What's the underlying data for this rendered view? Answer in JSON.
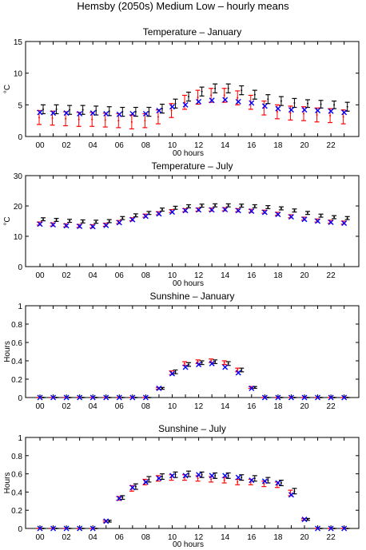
{
  "figure_title": "Hemsby (2050s) Medium Low – hourly means",
  "colors": {
    "black": "#000000",
    "red": "#ff0000",
    "blue": "#0000ff",
    "axis": "#000000"
  },
  "chart_data": [
    {
      "type": "scatter",
      "title": "Temperature – January",
      "xlabel": "00 hours",
      "ylabel": "°C",
      "ylim": [
        0,
        15
      ],
      "yticks": [
        "0",
        "5",
        "10",
        "15"
      ],
      "xticks": [
        "00",
        "02",
        "04",
        "06",
        "08",
        "10",
        "12",
        "14",
        "16",
        "18",
        "20",
        "22"
      ],
      "hours": [
        0,
        1,
        2,
        3,
        4,
        5,
        6,
        7,
        8,
        9,
        10,
        11,
        12,
        13,
        14,
        15,
        16,
        17,
        18,
        19,
        20,
        21,
        22,
        23
      ],
      "series": [
        {
          "color": "black",
          "marker": "errorbar",
          "values": [
            4.3,
            4.3,
            4.2,
            4.2,
            4.1,
            4.0,
            3.9,
            3.9,
            3.9,
            4.4,
            5.2,
            6.3,
            7.1,
            7.6,
            7.6,
            7.3,
            6.6,
            5.9,
            5.6,
            5.3,
            5.2,
            5.1,
            5.0,
            4.7
          ],
          "err": [
            0.7,
            0.7,
            0.7,
            0.7,
            0.7,
            0.7,
            0.7,
            0.7,
            0.7,
            0.7,
            0.7,
            0.7,
            0.7,
            0.7,
            0.7,
            0.7,
            0.7,
            0.7,
            0.7,
            0.7,
            0.6,
            0.6,
            0.6,
            0.7
          ]
        },
        {
          "color": "red",
          "marker": "errorbar",
          "values": [
            3.0,
            2.9,
            2.8,
            2.7,
            2.7,
            2.6,
            2.5,
            2.3,
            2.5,
            3.1,
            4.1,
            5.4,
            6.2,
            6.5,
            6.5,
            6.1,
            5.4,
            4.5,
            3.9,
            3.7,
            3.6,
            3.4,
            3.3,
            3.1
          ],
          "err": [
            1.1,
            1.1,
            1.1,
            1.1,
            1.1,
            1.1,
            1.1,
            1.1,
            1.1,
            1.1,
            1.1,
            1.1,
            1.1,
            1.1,
            1.1,
            1.1,
            1.1,
            1.1,
            1.1,
            1.1,
            1.1,
            1.1,
            1.1,
            1.1
          ]
        },
        {
          "color": "blue",
          "marker": "x",
          "values": [
            3.8,
            3.7,
            3.7,
            3.6,
            3.7,
            3.6,
            3.5,
            3.6,
            3.6,
            4.1,
            4.7,
            5.0,
            5.5,
            5.7,
            5.8,
            5.5,
            5.3,
            4.8,
            4.4,
            4.2,
            4.2,
            4.1,
            4.0,
            3.8
          ]
        }
      ]
    },
    {
      "type": "scatter",
      "title": "Temperature – July",
      "xlabel": "00 hours",
      "ylabel": "°C",
      "ylim": [
        0,
        30
      ],
      "yticks": [
        "0",
        "10",
        "20",
        "30"
      ],
      "xticks": [
        "00",
        "02",
        "04",
        "06",
        "08",
        "10",
        "12",
        "14",
        "16",
        "18",
        "20",
        "22"
      ],
      "hours": [
        0,
        1,
        2,
        3,
        4,
        5,
        6,
        7,
        8,
        9,
        10,
        11,
        12,
        13,
        14,
        15,
        16,
        17,
        18,
        19,
        20,
        21,
        22,
        23
      ],
      "series": [
        {
          "color": "black",
          "marker": "errorbar",
          "values": [
            15.6,
            15.4,
            15.1,
            14.9,
            14.8,
            15.0,
            16.0,
            16.9,
            17.7,
            18.8,
            19.4,
            19.9,
            20.1,
            20.2,
            20.2,
            20.1,
            19.9,
            19.6,
            19.2,
            18.5,
            17.7,
            16.8,
            16.3,
            16.0
          ],
          "err": [
            0.5,
            0.5,
            0.5,
            0.5,
            0.5,
            0.5,
            0.5,
            0.5,
            0.5,
            0.5,
            0.5,
            0.5,
            0.5,
            0.5,
            0.5,
            0.5,
            0.5,
            0.5,
            0.5,
            0.5,
            0.5,
            0.5,
            0.5,
            0.5
          ]
        },
        {
          "color": "red",
          "marker": "errorbar",
          "values": [
            14.2,
            13.9,
            13.6,
            13.4,
            13.3,
            13.8,
            14.7,
            15.6,
            16.8,
            17.6,
            18.3,
            18.6,
            18.8,
            18.8,
            18.9,
            18.6,
            18.4,
            18.1,
            17.4,
            16.6,
            15.8,
            15.2,
            14.8,
            14.5
          ],
          "err": [
            0.5,
            0.5,
            0.5,
            0.5,
            0.5,
            0.5,
            0.5,
            0.5,
            0.5,
            0.5,
            0.5,
            0.5,
            0.5,
            0.5,
            0.5,
            0.5,
            0.5,
            0.5,
            0.5,
            0.5,
            0.5,
            0.5,
            0.5,
            0.5
          ]
        },
        {
          "color": "blue",
          "marker": "x",
          "values": [
            14.0,
            13.8,
            13.5,
            13.3,
            13.2,
            13.6,
            14.5,
            15.5,
            16.6,
            17.4,
            18.0,
            18.5,
            18.7,
            18.7,
            18.8,
            18.5,
            18.3,
            17.9,
            17.2,
            16.4,
            15.6,
            15.0,
            14.6,
            14.3
          ]
        }
      ]
    },
    {
      "type": "scatter",
      "title": "Sunshine – January",
      "xlabel": "",
      "ylabel": "Hours",
      "ylim": [
        0,
        1
      ],
      "yticks": [
        "0",
        "0.2",
        "0.4",
        "0.6",
        "0.8",
        "1"
      ],
      "xticks": [
        "00",
        "02",
        "04",
        "06",
        "08",
        "10",
        "12",
        "14",
        "16",
        "18",
        "20",
        "22"
      ],
      "hours": [
        0,
        1,
        2,
        3,
        4,
        5,
        6,
        7,
        8,
        9,
        10,
        11,
        12,
        13,
        14,
        15,
        16,
        17,
        18,
        19,
        20,
        21,
        22,
        23
      ],
      "series": [
        {
          "color": "black",
          "marker": "errorbar",
          "values": [
            0,
            0,
            0,
            0,
            0,
            0,
            0,
            0,
            0,
            0.1,
            0.28,
            0.36,
            0.38,
            0.39,
            0.37,
            0.3,
            0.11,
            0,
            0,
            0,
            0,
            0,
            0,
            0
          ],
          "err": [
            0,
            0,
            0,
            0,
            0,
            0,
            0,
            0,
            0,
            0.01,
            0.02,
            0.02,
            0.02,
            0.02,
            0.02,
            0.02,
            0.01,
            0,
            0,
            0,
            0,
            0,
            0,
            0
          ]
        },
        {
          "color": "red",
          "marker": "errorbar",
          "values": [
            0,
            0,
            0,
            0,
            0,
            0,
            0,
            0,
            0,
            0.1,
            0.27,
            0.37,
            0.39,
            0.4,
            0.38,
            0.3,
            0.11,
            0,
            0,
            0,
            0,
            0,
            0,
            0
          ],
          "err": [
            0,
            0,
            0,
            0,
            0,
            0,
            0,
            0,
            0,
            0.01,
            0.02,
            0.02,
            0.02,
            0.02,
            0.02,
            0.02,
            0.01,
            0,
            0,
            0,
            0,
            0,
            0,
            0
          ]
        },
        {
          "color": "blue",
          "marker": "x",
          "values": [
            0,
            0,
            0,
            0,
            0,
            0,
            0,
            0,
            0,
            0.1,
            0.26,
            0.33,
            0.36,
            0.37,
            0.33,
            0.27,
            0.1,
            0,
            0,
            0,
            0,
            0,
            0,
            0
          ]
        }
      ]
    },
    {
      "type": "scatter",
      "title": "Sunshine – July",
      "xlabel": "00 hours",
      "ylabel": "Hours",
      "ylim": [
        0,
        1
      ],
      "yticks": [
        "0",
        "0.2",
        "0.4",
        "0.6",
        "0.8",
        "1"
      ],
      "xticks": [
        "00",
        "02",
        "04",
        "06",
        "08",
        "10",
        "12",
        "14",
        "16",
        "18",
        "20",
        "22"
      ],
      "hours": [
        0,
        1,
        2,
        3,
        4,
        5,
        6,
        7,
        8,
        9,
        10,
        11,
        12,
        13,
        14,
        15,
        16,
        17,
        18,
        19,
        20,
        21,
        22,
        23
      ],
      "series": [
        {
          "color": "black",
          "marker": "errorbar",
          "values": [
            0,
            0,
            0,
            0,
            0,
            0.08,
            0.34,
            0.46,
            0.54,
            0.57,
            0.59,
            0.6,
            0.59,
            0.58,
            0.58,
            0.56,
            0.55,
            0.53,
            0.5,
            0.41,
            0.1,
            0,
            0,
            0
          ],
          "err": [
            0,
            0,
            0,
            0,
            0,
            0.01,
            0.02,
            0.03,
            0.03,
            0.03,
            0.03,
            0.03,
            0.03,
            0.03,
            0.03,
            0.03,
            0.03,
            0.03,
            0.03,
            0.03,
            0.01,
            0,
            0,
            0
          ]
        },
        {
          "color": "red",
          "marker": "errorbar",
          "values": [
            0,
            0,
            0,
            0,
            0,
            0.08,
            0.33,
            0.44,
            0.51,
            0.55,
            0.56,
            0.56,
            0.55,
            0.54,
            0.53,
            0.51,
            0.51,
            0.49,
            0.48,
            0.39,
            0.1,
            0,
            0,
            0
          ],
          "err": [
            0,
            0,
            0,
            0,
            0,
            0.01,
            0.02,
            0.03,
            0.03,
            0.03,
            0.03,
            0.03,
            0.03,
            0.03,
            0.03,
            0.03,
            0.03,
            0.03,
            0.03,
            0.03,
            0.01,
            0,
            0,
            0
          ]
        },
        {
          "color": "blue",
          "marker": "x",
          "values": [
            0,
            0,
            0,
            0,
            0,
            0.08,
            0.33,
            0.45,
            0.51,
            0.55,
            0.58,
            0.58,
            0.59,
            0.58,
            0.58,
            0.56,
            0.53,
            0.52,
            0.5,
            0.37,
            0.1,
            0,
            0,
            0
          ]
        }
      ]
    }
  ]
}
